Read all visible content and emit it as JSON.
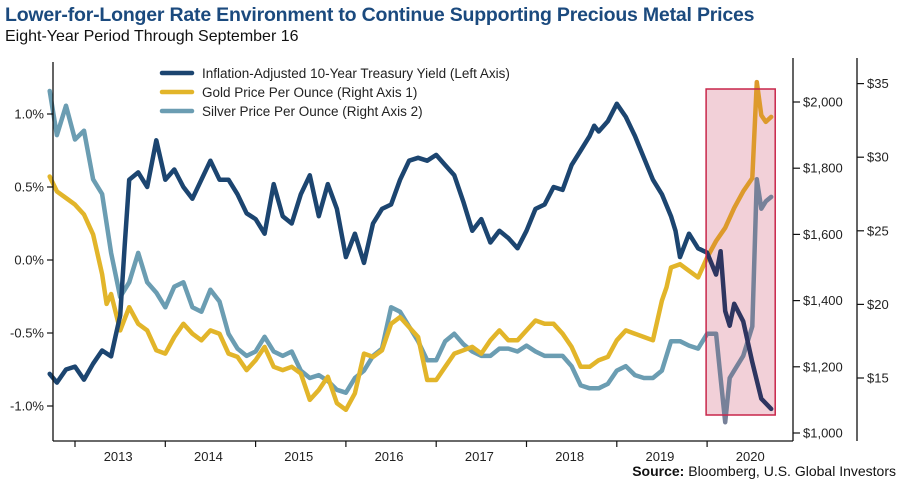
{
  "header": {
    "title": "Lower-for-Longer Rate Environment to Continue Supporting Precious Metal Prices",
    "subtitle": "Eight-Year Period Through September 16"
  },
  "source": {
    "label": "Source:",
    "text": " Bloomberg, U.S. Global Investors"
  },
  "colors": {
    "yield": "#1c4570",
    "gold": "#e2b52a",
    "silver": "#6b9db2",
    "highlight_fill": "#f2d0d8",
    "highlight_border": "#c8264a",
    "yield_in_highlight": "#2e3560",
    "gold_in_highlight": "#dd9a2c",
    "silver_in_highlight": "#778199"
  },
  "chart_data": {
    "type": "line",
    "title": "Lower-for-Longer Rate Environment to Continue Supporting Precious Metal Prices",
    "subtitle": "Eight-Year Period Through September 16",
    "xlabel": "",
    "x_tick_labels": [
      "2013",
      "2014",
      "2015",
      "2016",
      "2017",
      "2018",
      "2019",
      "2020"
    ],
    "x_range": [
      2012.72,
      2020.71
    ],
    "axes": {
      "left": {
        "label": "Inflation-Adjusted 10-Year Treasury Yield",
        "ylim": [
          -1.2,
          1.35
        ],
        "ticks": [
          1.0,
          0.5,
          0.0,
          -0.5,
          -1.0
        ],
        "tick_labels": [
          "1.0%",
          "0.5%",
          "0.0%",
          "-0.5%",
          "-1.0%"
        ]
      },
      "right1": {
        "label": "Gold Price Per Ounce",
        "ylim": [
          975,
          2075
        ],
        "ticks": [
          2000,
          1800,
          1600,
          1400,
          1200,
          1000
        ],
        "tick_labels": [
          "$2,000",
          "$1,800",
          "$1,600",
          "$1,400",
          "$1,200",
          "$1,000"
        ]
      },
      "right2": {
        "label": "Silver Price Per Ounce",
        "ylim": [
          11.5,
          36
        ],
        "ticks": [
          35,
          30,
          25,
          20,
          15
        ],
        "tick_labels": [
          "$35",
          "$30",
          "$25",
          "$20",
          "$15"
        ]
      }
    },
    "legend": {
      "placement": "top-center",
      "entries": [
        "Inflation-Adjusted 10-Year Treasury Yield (Left Axis)",
        "Gold Price Per Ounce (Right Axis 1)",
        "Silver Price Per Ounce (Right Axis 2)"
      ]
    },
    "highlight": {
      "x_range": [
        2020.0,
        2020.71
      ],
      "note": "2020 shaded region"
    },
    "grid": false,
    "series": [
      {
        "name": "Inflation-Adjusted 10-Year Treasury Yield (Left Axis)",
        "axis": "left",
        "x": [
          2012.72,
          2012.8,
          2012.9,
          2013.0,
          2013.1,
          2013.2,
          2013.3,
          2013.4,
          2013.45,
          2013.5,
          2013.55,
          2013.6,
          2013.7,
          2013.8,
          2013.9,
          2014.0,
          2014.1,
          2014.2,
          2014.3,
          2014.4,
          2014.5,
          2014.6,
          2014.7,
          2014.8,
          2014.9,
          2015.0,
          2015.1,
          2015.2,
          2015.3,
          2015.4,
          2015.5,
          2015.6,
          2015.7,
          2015.8,
          2015.9,
          2016.0,
          2016.1,
          2016.2,
          2016.3,
          2016.4,
          2016.5,
          2016.6,
          2016.7,
          2016.8,
          2016.9,
          2017.0,
          2017.1,
          2017.2,
          2017.3,
          2017.4,
          2017.5,
          2017.6,
          2017.7,
          2017.8,
          2017.9,
          2018.0,
          2018.1,
          2018.2,
          2018.3,
          2018.4,
          2018.5,
          2018.6,
          2018.7,
          2018.75,
          2018.8,
          2018.9,
          2019.0,
          2019.1,
          2019.2,
          2019.3,
          2019.4,
          2019.5,
          2019.6,
          2019.65,
          2019.7,
          2019.8,
          2019.9,
          2020.0,
          2020.1,
          2020.15,
          2020.2,
          2020.25,
          2020.3,
          2020.4,
          2020.5,
          2020.6,
          2020.71
        ],
        "values": [
          -0.78,
          -0.84,
          -0.75,
          -0.73,
          -0.82,
          -0.71,
          -0.62,
          -0.66,
          -0.52,
          -0.38,
          0.1,
          0.55,
          0.6,
          0.5,
          0.82,
          0.55,
          0.62,
          0.5,
          0.42,
          0.55,
          0.68,
          0.55,
          0.55,
          0.45,
          0.32,
          0.28,
          0.18,
          0.52,
          0.3,
          0.25,
          0.45,
          0.58,
          0.3,
          0.52,
          0.35,
          0.02,
          0.18,
          -0.02,
          0.25,
          0.35,
          0.38,
          0.55,
          0.68,
          0.7,
          0.68,
          0.72,
          0.65,
          0.58,
          0.4,
          0.2,
          0.28,
          0.12,
          0.2,
          0.15,
          0.08,
          0.2,
          0.35,
          0.38,
          0.5,
          0.48,
          0.65,
          0.75,
          0.85,
          0.92,
          0.88,
          0.95,
          1.07,
          0.98,
          0.85,
          0.7,
          0.55,
          0.45,
          0.3,
          0.2,
          0.02,
          0.18,
          0.08,
          0.05,
          -0.1,
          0.06,
          -0.35,
          -0.45,
          -0.3,
          -0.42,
          -0.7,
          -0.95,
          -1.02
        ]
      },
      {
        "name": "Gold Price Per Ounce (Right Axis 1)",
        "axis": "right1",
        "x": [
          2012.72,
          2012.8,
          2012.9,
          2013.0,
          2013.1,
          2013.2,
          2013.3,
          2013.35,
          2013.4,
          2013.5,
          2013.6,
          2013.7,
          2013.8,
          2013.9,
          2014.0,
          2014.1,
          2014.2,
          2014.3,
          2014.4,
          2014.5,
          2014.6,
          2014.7,
          2014.8,
          2014.9,
          2015.0,
          2015.1,
          2015.2,
          2015.3,
          2015.4,
          2015.5,
          2015.6,
          2015.7,
          2015.8,
          2015.9,
          2016.0,
          2016.1,
          2016.2,
          2016.3,
          2016.4,
          2016.5,
          2016.6,
          2016.7,
          2016.8,
          2016.9,
          2017.0,
          2017.1,
          2017.2,
          2017.3,
          2017.4,
          2017.5,
          2017.6,
          2017.7,
          2017.8,
          2017.9,
          2018.0,
          2018.1,
          2018.2,
          2018.3,
          2018.4,
          2018.5,
          2018.6,
          2018.7,
          2018.8,
          2018.9,
          2019.0,
          2019.1,
          2019.2,
          2019.3,
          2019.4,
          2019.5,
          2019.55,
          2019.6,
          2019.7,
          2019.8,
          2019.9,
          2020.0,
          2020.1,
          2020.2,
          2020.3,
          2020.4,
          2020.5,
          2020.55,
          2020.6,
          2020.65,
          2020.71
        ],
        "values": [
          1775,
          1730,
          1710,
          1690,
          1660,
          1600,
          1480,
          1390,
          1420,
          1310,
          1380,
          1330,
          1310,
          1250,
          1240,
          1290,
          1330,
          1300,
          1280,
          1310,
          1300,
          1240,
          1230,
          1190,
          1220,
          1260,
          1200,
          1190,
          1200,
          1180,
          1100,
          1130,
          1170,
          1090,
          1070,
          1120,
          1240,
          1230,
          1250,
          1330,
          1350,
          1320,
          1290,
          1160,
          1160,
          1200,
          1240,
          1250,
          1260,
          1240,
          1280,
          1310,
          1280,
          1280,
          1310,
          1340,
          1330,
          1330,
          1300,
          1260,
          1200,
          1200,
          1220,
          1230,
          1280,
          1310,
          1300,
          1290,
          1280,
          1400,
          1440,
          1500,
          1510,
          1490,
          1470,
          1530,
          1580,
          1620,
          1680,
          1730,
          1770,
          2060,
          1960,
          1940,
          1955
        ]
      },
      {
        "name": "Silver Price Per Ounce (Right Axis 2)",
        "axis": "right2",
        "x": [
          2012.72,
          2012.8,
          2012.9,
          2013.0,
          2013.1,
          2013.2,
          2013.3,
          2013.4,
          2013.5,
          2013.6,
          2013.7,
          2013.8,
          2013.9,
          2014.0,
          2014.1,
          2014.2,
          2014.3,
          2014.4,
          2014.5,
          2014.6,
          2014.7,
          2014.8,
          2014.9,
          2015.0,
          2015.1,
          2015.2,
          2015.3,
          2015.4,
          2015.5,
          2015.6,
          2015.7,
          2015.8,
          2015.9,
          2016.0,
          2016.1,
          2016.2,
          2016.3,
          2016.4,
          2016.5,
          2016.6,
          2016.7,
          2016.8,
          2016.9,
          2017.0,
          2017.1,
          2017.2,
          2017.3,
          2017.4,
          2017.5,
          2017.6,
          2017.7,
          2017.8,
          2017.9,
          2018.0,
          2018.1,
          2018.2,
          2018.3,
          2018.4,
          2018.5,
          2018.6,
          2018.7,
          2018.8,
          2018.9,
          2019.0,
          2019.1,
          2019.2,
          2019.3,
          2019.4,
          2019.5,
          2019.6,
          2019.7,
          2019.8,
          2019.9,
          2020.0,
          2020.1,
          2020.15,
          2020.2,
          2020.25,
          2020.3,
          2020.4,
          2020.5,
          2020.55,
          2020.6,
          2020.65,
          2020.71
        ],
        "values": [
          34.5,
          31.5,
          33.5,
          31.2,
          31.8,
          28.5,
          27.5,
          23.5,
          20.5,
          21.5,
          23.5,
          21.5,
          20.8,
          19.8,
          21.2,
          21.5,
          19.8,
          19.5,
          21.0,
          20.2,
          18.0,
          17.0,
          16.5,
          16.8,
          17.8,
          16.8,
          16.5,
          16.8,
          15.5,
          15.0,
          15.2,
          14.8,
          14.2,
          14.0,
          15.0,
          15.5,
          16.5,
          17.0,
          19.8,
          19.5,
          18.5,
          17.5,
          16.2,
          16.2,
          17.5,
          18.0,
          17.3,
          16.8,
          16.5,
          16.5,
          17.0,
          17.0,
          16.8,
          17.2,
          16.8,
          16.5,
          16.5,
          16.5,
          15.8,
          14.5,
          14.3,
          14.3,
          14.6,
          15.5,
          15.8,
          15.2,
          15.0,
          15.0,
          15.5,
          17.5,
          17.5,
          17.2,
          17.0,
          18.0,
          18.0,
          15.0,
          12.0,
          15.0,
          15.5,
          16.5,
          18.5,
          28.5,
          26.5,
          27.0,
          27.3
        ]
      }
    ]
  }
}
